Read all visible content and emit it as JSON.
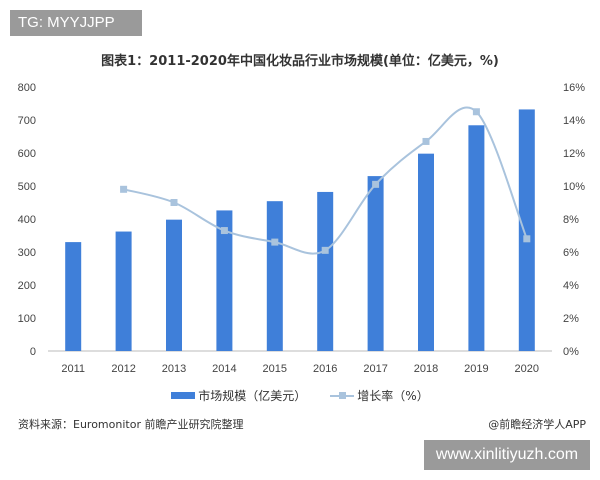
{
  "tag": "TG: MYYJJPP",
  "watermark": "www.xinlitiyuzh.com",
  "chart_data": {
    "type": "bar+line",
    "title": "图表1：2011-2020年中国化妆品行业市场规模(单位：亿美元，%)",
    "categories": [
      "2011",
      "2012",
      "2013",
      "2014",
      "2015",
      "2016",
      "2017",
      "2018",
      "2019",
      "2020"
    ],
    "series": [
      {
        "name": "市场规模（亿美元）",
        "type": "bar",
        "axis": "left",
        "color": "#3f7fd9",
        "values": [
          330,
          362,
          398,
          426,
          454,
          482,
          530,
          598,
          684,
          732
        ]
      },
      {
        "name": "增长率（%）",
        "type": "line",
        "axis": "right",
        "color": "#a9c3dd",
        "values": [
          null,
          9.8,
          9.0,
          7.3,
          6.6,
          6.1,
          10.1,
          12.7,
          14.5,
          6.8
        ]
      }
    ],
    "left_axis": {
      "range": [
        0,
        800
      ],
      "ticks": [
        "0",
        "100",
        "200",
        "300",
        "400",
        "500",
        "600",
        "700",
        "800"
      ]
    },
    "right_axis": {
      "range": [
        0,
        16
      ],
      "ticks": [
        "0%",
        "2%",
        "4%",
        "6%",
        "8%",
        "10%",
        "12%",
        "14%",
        "16%"
      ]
    },
    "grid": false,
    "legend_placement": "bottom"
  },
  "source": "资料来源：Euromonitor 前瞻产业研究院整理",
  "brand": "@前瞻经济学人APP"
}
